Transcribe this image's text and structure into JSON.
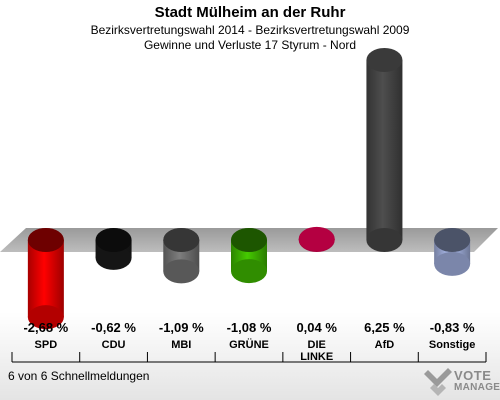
{
  "header": {
    "title": "Stadt Mülheim an der Ruhr",
    "subtitle": "Bezirksvertretungswahl 2014 - Bezirksvertretungswahl 2009",
    "subtitle2": "Gewinne und Verluste 17 Styrum - Nord"
  },
  "footer": {
    "status": "6 von 6 Schnellmeldungen"
  },
  "logo": {
    "line1": "VOTE",
    "line2": "MANAGER"
  },
  "chart_data": {
    "type": "bar",
    "title": "Stadt Mülheim an der Ruhr",
    "categories": [
      "SPD",
      "CDU",
      "MBI",
      "GRÜNE",
      "DIE LINKE",
      "AfD",
      "Sonstige"
    ],
    "category_lines": [
      [
        "SPD"
      ],
      [
        "CDU"
      ],
      [
        "MBI"
      ],
      [
        "GRÜNE"
      ],
      [
        "DIE",
        "LINKE"
      ],
      [
        "AfD"
      ],
      [
        "Sonstige"
      ]
    ],
    "values": [
      -2.68,
      -0.62,
      -1.09,
      -1.08,
      0.04,
      6.25,
      -0.83
    ],
    "labels": [
      "-2,68 %",
      "-0,62 %",
      "-1,09 %",
      "-1,08 %",
      "0,04 %",
      "6,25 %",
      "-0,83 %"
    ],
    "colors": [
      "#e00000",
      "#1a1a1a",
      "#6e6e6e",
      "#3cb000",
      "#d4004c",
      "#444444",
      "#9aa8d4"
    ],
    "grid": false,
    "legend": "none"
  }
}
